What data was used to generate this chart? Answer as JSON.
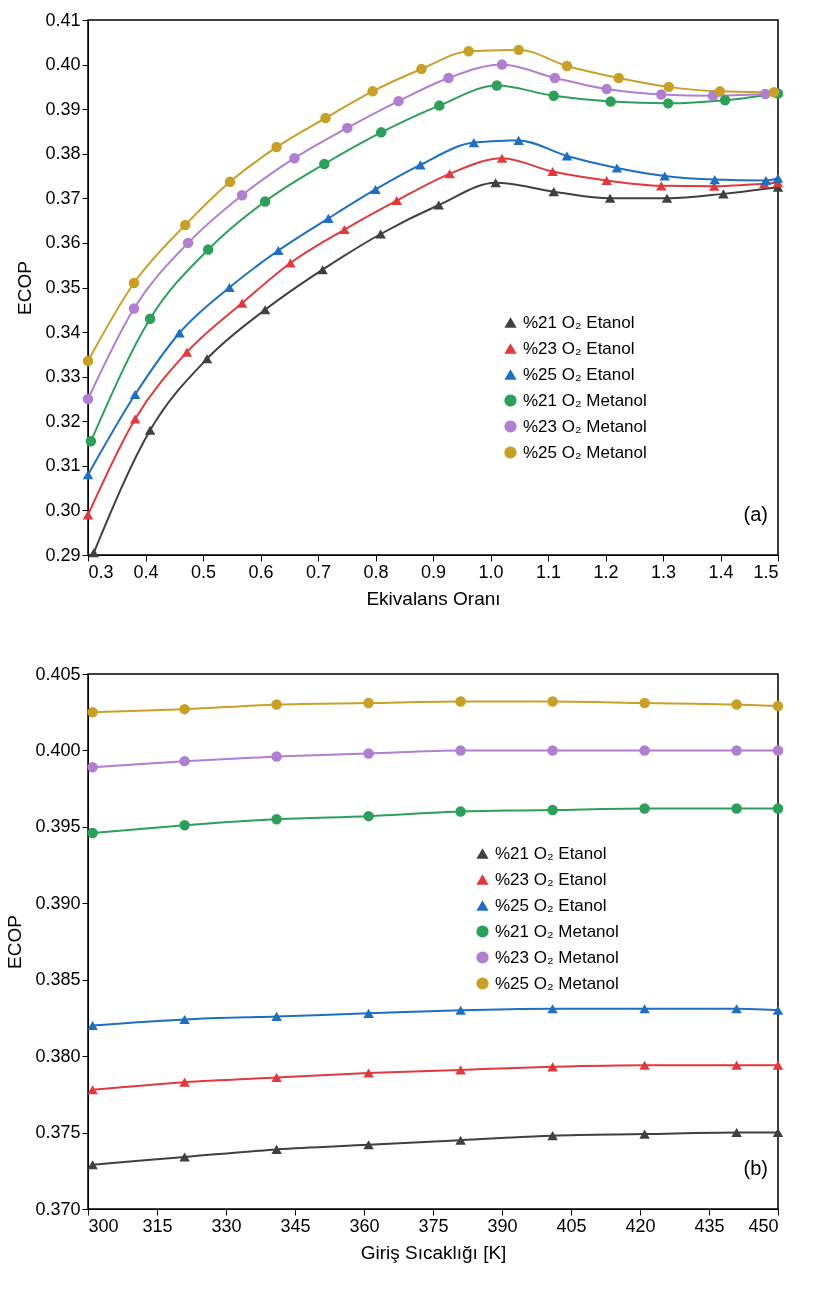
{
  "chart_data": [
    {
      "type": "line",
      "xlabel": "Ekivalans Oranı",
      "ylabel": "ECOP",
      "legend": "bottom right",
      "grid": false,
      "line_style": "solid",
      "xlim": [
        0.3,
        1.5
      ],
      "ylim": [
        0.29,
        0.41
      ],
      "xticks": [
        {
          "value": 0.3,
          "label": "0.3"
        },
        {
          "value": 0.4,
          "label": "0.4"
        },
        {
          "value": 0.5,
          "label": "0.5"
        },
        {
          "value": 0.6,
          "label": "0.6"
        },
        {
          "value": 0.7,
          "label": "0.7"
        },
        {
          "value": 0.8,
          "label": "0.8"
        },
        {
          "value": 0.9,
          "label": "0.9"
        },
        {
          "value": 1.0,
          "label": "1.0"
        },
        {
          "value": 1.1,
          "label": "1.1"
        },
        {
          "value": 1.2,
          "label": "1.2"
        },
        {
          "value": 1.3,
          "label": "1.3"
        },
        {
          "value": 1.4,
          "label": "1.4"
        },
        {
          "value": 1.5,
          "label": "1.5"
        }
      ],
      "yticks": [
        {
          "value": 0.29,
          "label": "0.29"
        },
        {
          "value": 0.3,
          "label": "0.30"
        },
        {
          "value": 0.31,
          "label": "0.31"
        },
        {
          "value": 0.32,
          "label": "0.32"
        },
        {
          "value": 0.33,
          "label": "0.33"
        },
        {
          "value": 0.34,
          "label": "0.34"
        },
        {
          "value": 0.35,
          "label": "0.35"
        },
        {
          "value": 0.36,
          "label": "0.36"
        },
        {
          "value": 0.37,
          "label": "0.37"
        },
        {
          "value": 0.38,
          "label": "0.38"
        },
        {
          "value": 0.39,
          "label": "0.39"
        },
        {
          "value": 0.4,
          "label": "0.40"
        },
        {
          "value": 0.41,
          "label": "0.41"
        }
      ],
      "annotations": [
        "(a)"
      ],
      "series": [
        {
          "name": "%21 O₂ Etanol",
          "color": "#404040",
          "marker": "triangle",
          "x": [
            0.31,
            0.408,
            0.507,
            0.608,
            0.708,
            0.809,
            0.91,
            1.009,
            1.11,
            1.208,
            1.307,
            1.405,
            1.5
          ],
          "values": [
            0.2905,
            0.318,
            0.334,
            0.345,
            0.354,
            0.362,
            0.3685,
            0.3735,
            0.3715,
            0.37,
            0.37,
            0.371,
            0.3725
          ]
        },
        {
          "name": "%23 O₂ Etanol",
          "color": "#e0393e",
          "marker": "triangle",
          "x": [
            0.3,
            0.382,
            0.472,
            0.568,
            0.652,
            0.746,
            0.837,
            0.929,
            1.02,
            1.108,
            1.202,
            1.297,
            1.389,
            1.476,
            1.5
          ],
          "values": [
            0.299,
            0.3205,
            0.3355,
            0.3465,
            0.3555,
            0.363,
            0.3695,
            0.3755,
            0.379,
            0.376,
            0.374,
            0.3728,
            0.3727,
            0.3733,
            0.3735
          ]
        },
        {
          "name": "%25 O₂ Etanol",
          "color": "#1f6fc0",
          "marker": "triangle",
          "x": [
            0.3,
            0.382,
            0.459,
            0.546,
            0.631,
            0.718,
            0.8,
            0.878,
            0.971,
            1.049,
            1.133,
            1.22,
            1.303,
            1.39,
            1.479,
            1.5
          ],
          "values": [
            0.308,
            0.326,
            0.3398,
            0.35,
            0.3583,
            0.3655,
            0.372,
            0.3775,
            0.3825,
            0.383,
            0.3795,
            0.3768,
            0.375,
            0.3742,
            0.374,
            0.3745
          ]
        },
        {
          "name": "%21 O₂ Metanol",
          "color": "#2ca05a",
          "marker": "circle",
          "x": [
            0.305,
            0.408,
            0.509,
            0.608,
            0.711,
            0.81,
            0.911,
            1.011,
            1.11,
            1.209,
            1.309,
            1.408,
            1.5
          ],
          "values": [
            0.3155,
            0.343,
            0.3585,
            0.3693,
            0.3777,
            0.3848,
            0.3908,
            0.3953,
            0.393,
            0.3917,
            0.3913,
            0.392,
            0.3935
          ]
        },
        {
          "name": "%23 O₂ Metanol",
          "color": "#b07fd0",
          "marker": "circle",
          "x": [
            0.3,
            0.38,
            0.474,
            0.568,
            0.659,
            0.751,
            0.84,
            0.927,
            1.02,
            1.112,
            1.202,
            1.297,
            1.387,
            1.478
          ],
          "values": [
            0.325,
            0.3453,
            0.36,
            0.3707,
            0.379,
            0.3858,
            0.3918,
            0.397,
            0.4,
            0.397,
            0.3945,
            0.3933,
            0.393,
            0.3934
          ]
        },
        {
          "name": "%25 O₂ Metanol",
          "color": "#c8a028",
          "marker": "circle",
          "x": [
            0.3,
            0.38,
            0.469,
            0.547,
            0.628,
            0.713,
            0.795,
            0.88,
            0.962,
            1.049,
            1.133,
            1.223,
            1.31,
            1.399,
            1.493
          ],
          "values": [
            0.3335,
            0.351,
            0.364,
            0.3737,
            0.3815,
            0.388,
            0.394,
            0.399,
            0.403,
            0.4033,
            0.3997,
            0.397,
            0.395,
            0.394,
            0.3938
          ]
        }
      ]
    },
    {
      "type": "line",
      "xlabel": "Giriş Sıcaklığı [K]",
      "ylabel": "ECOP",
      "legend": "right",
      "grid": false,
      "line_style": "solid",
      "xlim": [
        300,
        450
      ],
      "ylim": [
        0.37,
        0.405
      ],
      "xticks": [
        300,
        315,
        330,
        345,
        360,
        375,
        390,
        405,
        420,
        435,
        450
      ],
      "yticks": [
        {
          "value": 0.37,
          "label": "0.370"
        },
        {
          "value": 0.375,
          "label": "0.375"
        },
        {
          "value": 0.38,
          "label": "0.380"
        },
        {
          "value": 0.385,
          "label": "0.385"
        },
        {
          "value": 0.39,
          "label": "0.390"
        },
        {
          "value": 0.395,
          "label": "0.395"
        },
        {
          "value": 0.4,
          "label": "0.400"
        },
        {
          "value": 0.405,
          "label": "0.405"
        }
      ],
      "annotations": [
        "(b)"
      ],
      "x": [
        301,
        321,
        341,
        361,
        381,
        401,
        421,
        441,
        450
      ],
      "series": [
        {
          "name": "%21 O₂ Etanol",
          "color": "#404040",
          "marker": "triangle",
          "values": [
            0.3729,
            0.3734,
            0.3739,
            0.3742,
            0.3745,
            0.3748,
            0.3749,
            0.375,
            0.375
          ]
        },
        {
          "name": "%23 O₂ Etanol",
          "color": "#e0393e",
          "marker": "triangle",
          "values": [
            0.3778,
            0.3783,
            0.3786,
            0.3789,
            0.3791,
            0.3793,
            0.3794,
            0.3794,
            0.3794
          ]
        },
        {
          "name": "%25 O₂ Etanol",
          "color": "#1f6fc0",
          "marker": "triangle",
          "values": [
            0.382,
            0.3824,
            0.3826,
            0.3828,
            0.383,
            0.3831,
            0.3831,
            0.3831,
            0.383
          ]
        },
        {
          "name": "%21 O₂ Metanol",
          "color": "#2ca05a",
          "marker": "circle",
          "values": [
            0.3946,
            0.3951,
            0.3955,
            0.3957,
            0.396,
            0.3961,
            0.3962,
            0.3962,
            0.3962
          ]
        },
        {
          "name": "%23 O₂ Metanol",
          "color": "#b07fd0",
          "marker": "circle",
          "values": [
            0.3989,
            0.3993,
            0.3996,
            0.3998,
            0.4,
            0.4,
            0.4,
            0.4,
            0.4
          ]
        },
        {
          "name": "%25 O₂ Metanol",
          "color": "#c8a028",
          "marker": "circle",
          "values": [
            0.4025,
            0.4027,
            0.403,
            0.4031,
            0.4032,
            0.4032,
            0.4031,
            0.403,
            0.4029
          ]
        }
      ]
    }
  ]
}
